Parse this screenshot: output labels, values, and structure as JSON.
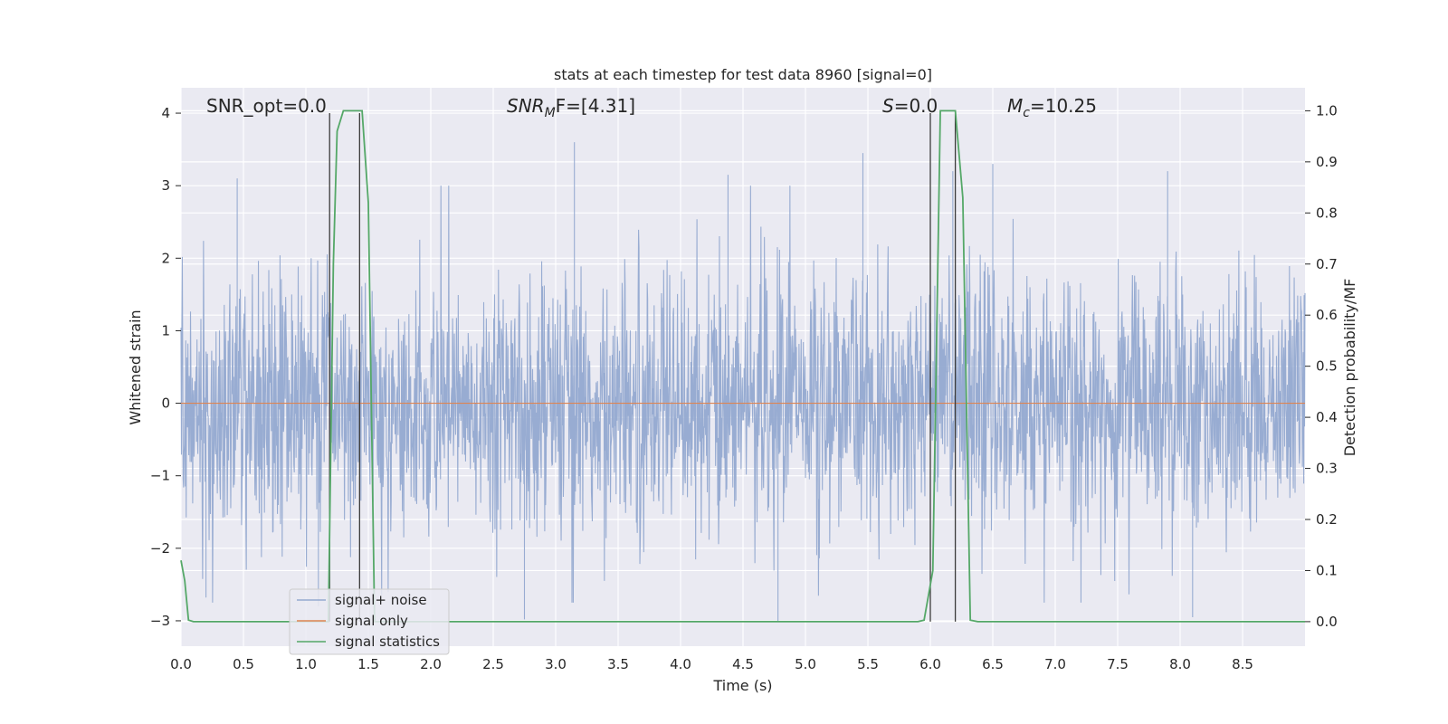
{
  "chart_data": {
    "type": "line",
    "title": "stats at each timestep for test data 8960 [signal=0]",
    "xlabel": "Time (s)",
    "ylabel": "Whitened strain",
    "ylabel_right": "Detection probability/MF",
    "xlim": [
      0.0,
      9.0
    ],
    "ylim": [
      -3.35,
      4.35
    ],
    "ylim_right": [
      -0.048,
      1.045
    ],
    "grid": true,
    "x_ticks": [
      "0.0",
      "0.5",
      "1.0",
      "1.5",
      "2.0",
      "2.5",
      "3.0",
      "3.5",
      "4.0",
      "4.5",
      "5.0",
      "5.5",
      "6.0",
      "6.5",
      "7.0",
      "7.5",
      "8.0",
      "8.5"
    ],
    "y_ticks": [
      "−3",
      "−2",
      "−1",
      "0",
      "1",
      "2",
      "3",
      "4"
    ],
    "y_ticks_right": [
      "0.0",
      "0.1",
      "0.2",
      "0.3",
      "0.4",
      "0.5",
      "0.6",
      "0.7",
      "0.8",
      "0.9",
      "1.0"
    ],
    "legend_position": "lower-left",
    "annotations": {
      "snr_opt": "SNR_opt=0.0",
      "snr_mf_main": "SNR",
      "snr_mf_sub": "M",
      "snr_mf_tail": "F=[4.31]",
      "s_main": "S",
      "s_tail": "=0.0",
      "mc_main": "M",
      "mc_sub": "c",
      "mc_tail": "=10.25"
    },
    "series": [
      {
        "name": "signal+ noise",
        "color": "#94a9d0",
        "kind": "noise",
        "description_stats": {
          "core_amplitude": 1.2,
          "peak_max": 3.6,
          "peak_min": -2.98
        },
        "notable_peaks": [
          {
            "x": 0.45,
            "y": 3.1
          },
          {
            "x": 3.15,
            "y": 3.6
          },
          {
            "x": 5.46,
            "y": 3.45
          },
          {
            "x": 6.18,
            "y": 3.2
          },
          {
            "x": 6.5,
            "y": 3.3
          },
          {
            "x": 4.38,
            "y": 3.15
          },
          {
            "x": 7.9,
            "y": 3.2
          },
          {
            "x": 4.78,
            "y": -3.0
          },
          {
            "x": 2.75,
            "y": -2.98
          },
          {
            "x": 8.1,
            "y": -2.95
          },
          {
            "x": 0.2,
            "y": -2.68
          },
          {
            "x": 1.1,
            "y": -2.8
          }
        ]
      },
      {
        "name": "signal only",
        "color": "#dd8452",
        "kind": "flat",
        "value": 0.0
      },
      {
        "name": "signal statistics",
        "color": "#55a868",
        "kind": "line",
        "axis": "right",
        "x": [
          0.0,
          0.03,
          0.06,
          0.1,
          0.5,
          1.0,
          1.18,
          1.22,
          1.25,
          1.3,
          1.35,
          1.45,
          1.5,
          1.55,
          1.6,
          2.0,
          3.0,
          4.0,
          5.0,
          5.9,
          5.95,
          6.02,
          6.08,
          6.2,
          6.26,
          6.32,
          6.38,
          7.0,
          8.0,
          9.0
        ],
        "y": [
          0.12,
          0.08,
          0.003,
          0.0,
          0.0,
          0.0,
          0.0,
          0.7,
          0.96,
          1.0,
          1.0,
          1.0,
          0.82,
          0.0,
          0.0,
          0.0,
          0.0,
          0.0,
          0.0,
          0.0,
          0.003,
          0.1,
          1.0,
          1.0,
          0.83,
          0.003,
          0.0,
          0.0,
          0.0,
          0.0
        ]
      }
    ],
    "vertical_lines": [
      1.19,
      1.43,
      6.0,
      6.2
    ]
  }
}
